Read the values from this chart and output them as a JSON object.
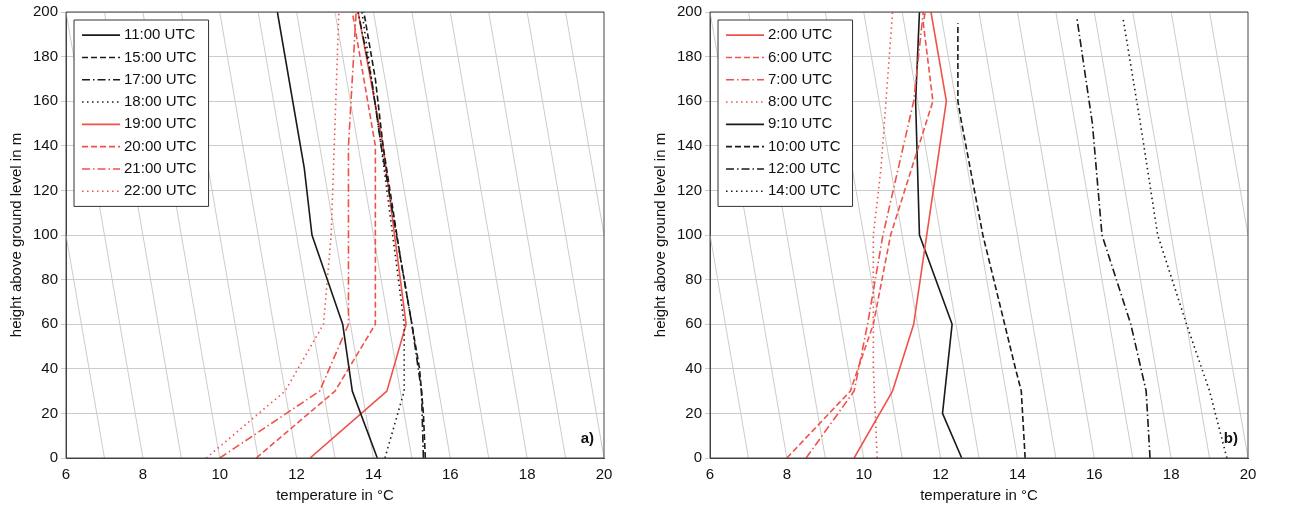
{
  "chart_data": [
    {
      "type": "line",
      "xlabel": "temperature in °C",
      "ylabel": "height above ground level in m",
      "xlim": [
        6,
        20
      ],
      "xticks": [
        6,
        8,
        10,
        12,
        14,
        16,
        18,
        20
      ],
      "ylim": [
        0,
        200
      ],
      "yticks": [
        0,
        20,
        40,
        60,
        80,
        100,
        120,
        140,
        160,
        180,
        200
      ],
      "grid": "y",
      "legend": "top left",
      "marker": "none",
      "annotations": [
        "a)"
      ],
      "series": [
        {
          "color": "#cccccc",
          "line_style": "solid",
          "x": [
            7,
            6
          ],
          "values": [
            0,
            100
          ]
        },
        {
          "color": "#cccccc",
          "line_style": "solid",
          "x": [
            8,
            6
          ],
          "values": [
            0,
            200
          ]
        },
        {
          "color": "#cccccc",
          "line_style": "solid",
          "x": [
            9,
            7
          ],
          "values": [
            0,
            200
          ]
        },
        {
          "color": "#cccccc",
          "line_style": "solid",
          "x": [
            10,
            8
          ],
          "values": [
            0,
            200
          ]
        },
        {
          "color": "#cccccc",
          "line_style": "solid",
          "x": [
            11,
            9
          ],
          "values": [
            0,
            200
          ]
        },
        {
          "color": "#cccccc",
          "line_style": "solid",
          "x": [
            12,
            10
          ],
          "values": [
            0,
            200
          ]
        },
        {
          "color": "#cccccc",
          "line_style": "solid",
          "x": [
            13,
            11
          ],
          "values": [
            0,
            200
          ]
        },
        {
          "color": "#cccccc",
          "line_style": "solid",
          "x": [
            14,
            12
          ],
          "values": [
            0,
            200
          ]
        },
        {
          "color": "#cccccc",
          "line_style": "solid",
          "x": [
            15,
            13
          ],
          "values": [
            0,
            200
          ]
        },
        {
          "color": "#cccccc",
          "line_style": "solid",
          "x": [
            16,
            14
          ],
          "values": [
            0,
            200
          ]
        },
        {
          "color": "#cccccc",
          "line_style": "solid",
          "x": [
            17,
            15
          ],
          "values": [
            0,
            200
          ]
        },
        {
          "color": "#cccccc",
          "line_style": "solid",
          "x": [
            18,
            16
          ],
          "values": [
            0,
            200
          ]
        },
        {
          "color": "#cccccc",
          "line_style": "solid",
          "x": [
            19,
            17
          ],
          "values": [
            0,
            200
          ]
        },
        {
          "color": "#cccccc",
          "line_style": "solid",
          "x": [
            20,
            18
          ],
          "values": [
            0,
            200
          ]
        },
        {
          "color": "#cccccc",
          "line_style": "solid",
          "x": [
            20,
            19
          ],
          "values": [
            100,
            200
          ]
        },
        {
          "name": "11:00 UTC",
          "color": "#1a1a1a",
          "line_style": "solid",
          "x": [
            14.1,
            13.45,
            13.2,
            12.4,
            12.2,
            11.5
          ],
          "values": [
            0,
            30,
            60,
            100,
            130,
            200
          ]
        },
        {
          "name": "15:00 UTC",
          "color": "#1a1a1a",
          "line_style": "dashed",
          "x": [
            15.35,
            15.3,
            15.2,
            15.0,
            14.7,
            14.25,
            14.05,
            13.75
          ],
          "values": [
            0,
            20,
            40,
            60,
            90,
            140,
            170,
            200
          ]
        },
        {
          "name": "17:00 UTC",
          "color": "#1a1a1a",
          "line_style": "dashdot",
          "x": [
            15.3,
            15.25,
            15.0,
            14.6,
            14.2,
            13.95,
            13.6
          ],
          "values": [
            0,
            30,
            60,
            100,
            140,
            170,
            200
          ]
        },
        {
          "name": "18:00 UTC",
          "color": "#1a1a1a",
          "line_style": "dotted",
          "x": [
            14.3,
            14.8,
            14.8,
            14.5,
            14.2,
            13.7
          ],
          "values": [
            0,
            30,
            60,
            100,
            140,
            200
          ]
        },
        {
          "name": "19:00 UTC",
          "color": "#f0524a",
          "line_style": "solid",
          "x": [
            12.35,
            14.35,
            14.85,
            14.25,
            13.6
          ],
          "values": [
            0,
            30,
            60,
            140,
            200
          ]
        },
        {
          "name": "20:00 UTC",
          "color": "#f0524a",
          "line_style": "dashed",
          "x": [
            10.95,
            13.0,
            14.05,
            14.05,
            13.45
          ],
          "values": [
            0,
            30,
            60,
            140,
            200
          ]
        },
        {
          "name": "21:00 UTC",
          "color": "#f0524a",
          "line_style": "dashdot",
          "x": [
            10.0,
            12.6,
            13.35,
            13.35,
            13.55
          ],
          "values": [
            0,
            30,
            60,
            140,
            200
          ]
        },
        {
          "name": "22:00 UTC",
          "color": "#f0524a",
          "line_style": "dotted",
          "x": [
            9.65,
            11.7,
            12.7,
            12.9,
            13.1
          ],
          "values": [
            0,
            30,
            60,
            100,
            200
          ]
        }
      ]
    },
    {
      "type": "line",
      "xlabel": "temperature in °C",
      "ylabel": "height above ground level in m",
      "xlim": [
        6,
        20
      ],
      "xticks": [
        6,
        8,
        10,
        12,
        14,
        16,
        18,
        20
      ],
      "ylim": [
        0,
        200
      ],
      "yticks": [
        0,
        20,
        40,
        60,
        80,
        100,
        120,
        140,
        160,
        180,
        200
      ],
      "grid": "y",
      "legend": "top left",
      "marker": "none",
      "annotations": [
        "b)"
      ],
      "series": [
        {
          "color": "#cccccc",
          "line_style": "solid",
          "x": [
            7,
            6
          ],
          "values": [
            0,
            100
          ]
        },
        {
          "color": "#cccccc",
          "line_style": "solid",
          "x": [
            8,
            6
          ],
          "values": [
            0,
            200
          ]
        },
        {
          "color": "#cccccc",
          "line_style": "solid",
          "x": [
            9,
            7
          ],
          "values": [
            0,
            200
          ]
        },
        {
          "color": "#cccccc",
          "line_style": "solid",
          "x": [
            10,
            8
          ],
          "values": [
            0,
            200
          ]
        },
        {
          "color": "#cccccc",
          "line_style": "solid",
          "x": [
            11,
            9
          ],
          "values": [
            0,
            200
          ]
        },
        {
          "color": "#cccccc",
          "line_style": "solid",
          "x": [
            12,
            10
          ],
          "values": [
            0,
            200
          ]
        },
        {
          "color": "#cccccc",
          "line_style": "solid",
          "x": [
            13,
            11
          ],
          "values": [
            0,
            200
          ]
        },
        {
          "color": "#cccccc",
          "line_style": "solid",
          "x": [
            14,
            12
          ],
          "values": [
            0,
            200
          ]
        },
        {
          "color": "#cccccc",
          "line_style": "solid",
          "x": [
            15,
            13
          ],
          "values": [
            0,
            200
          ]
        },
        {
          "color": "#cccccc",
          "line_style": "solid",
          "x": [
            16,
            14
          ],
          "values": [
            0,
            200
          ]
        },
        {
          "color": "#cccccc",
          "line_style": "solid",
          "x": [
            17,
            15
          ],
          "values": [
            0,
            200
          ]
        },
        {
          "color": "#cccccc",
          "line_style": "solid",
          "x": [
            18,
            16
          ],
          "values": [
            0,
            200
          ]
        },
        {
          "color": "#cccccc",
          "line_style": "solid",
          "x": [
            19,
            17
          ],
          "values": [
            0,
            200
          ]
        },
        {
          "color": "#cccccc",
          "line_style": "solid",
          "x": [
            20,
            18
          ],
          "values": [
            0,
            200
          ]
        },
        {
          "color": "#cccccc",
          "line_style": "solid",
          "x": [
            20,
            19
          ],
          "values": [
            100,
            200
          ]
        },
        {
          "name": "2:00 UTC",
          "color": "#f0524a",
          "line_style": "solid",
          "x": [
            9.75,
            10.75,
            11.3,
            12.15,
            11.75
          ],
          "values": [
            0,
            30,
            60,
            160,
            200
          ]
        },
        {
          "name": "6:00 UTC",
          "color": "#f0524a",
          "line_style": "dashed",
          "x": [
            8.0,
            9.65,
            10.25,
            10.7,
            11.8,
            11.55,
            11.6
          ],
          "values": [
            0,
            30,
            60,
            100,
            160,
            195,
            200
          ]
        },
        {
          "name": "7:00 UTC",
          "color": "#f0524a",
          "line_style": "dashdot",
          "x": [
            8.5,
            9.75,
            10.1,
            10.5,
            11.3,
            11.55
          ],
          "values": [
            0,
            30,
            60,
            100,
            160,
            200
          ]
        },
        {
          "name": "8:00 UTC",
          "color": "#f0524a",
          "line_style": "dotted",
          "x": [
            10.35,
            10.25,
            10.25,
            10.45,
            10.75
          ],
          "values": [
            0,
            40,
            100,
            130,
            200
          ]
        },
        {
          "name": "9:10 UTC",
          "color": "#1a1a1a",
          "line_style": "solid",
          "x": [
            12.55,
            12.05,
            12.3,
            11.45,
            11.35,
            11.45
          ],
          "values": [
            0,
            20,
            60,
            100,
            160,
            200
          ]
        },
        {
          "name": "10:00 UTC",
          "color": "#1a1a1a",
          "line_style": "dashed",
          "x": [
            14.2,
            14.1,
            13.95,
            13.1,
            12.55,
            12.45,
            12.45
          ],
          "values": [
            0,
            30,
            40,
            100,
            150,
            160,
            195
          ]
        },
        {
          "name": "12:00 UTC",
          "color": "#1a1a1a",
          "line_style": "dashdot",
          "x": [
            17.45,
            17.35,
            16.95,
            16.2,
            15.95,
            15.55
          ],
          "values": [
            0,
            30,
            60,
            100,
            150,
            197
          ]
        },
        {
          "name": "14:00 UTC",
          "color": "#1a1a1a",
          "line_style": "dotted",
          "x": [
            19.45,
            19.0,
            18.4,
            17.65,
            17.2,
            16.75
          ],
          "values": [
            0,
            30,
            60,
            100,
            150,
            197
          ]
        }
      ]
    }
  ]
}
